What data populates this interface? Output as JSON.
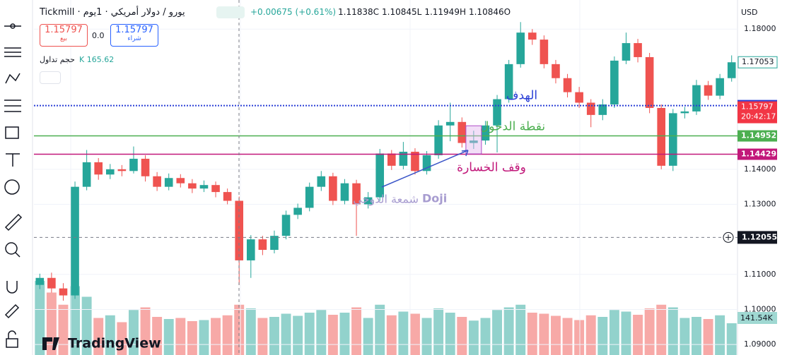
{
  "header": {
    "symbol": "يورو / دولار أمريكي · 1يوم · Tickmill",
    "change": "+0.00675 (+0.61%)",
    "ohlc": [
      "1.11838C",
      "1.10845L",
      "1.11949H",
      "1.10846O"
    ],
    "currency": "USD"
  },
  "trade": {
    "sell_price": "1.15797",
    "sell_label": "بيع",
    "spread": "0.0",
    "buy_price": "1.15797",
    "buy_label": "شراء"
  },
  "volume_info": {
    "label": "حجم تداول",
    "value": "K 165.62"
  },
  "branding": "TradingView",
  "chart_data": {
    "type": "candlestick",
    "candles": [
      [
        1.107,
        1.1102,
        1.1058,
        1.109
      ],
      [
        1.109,
        1.1105,
        1.1048,
        1.106
      ],
      [
        1.106,
        1.1075,
        1.1025,
        1.104
      ],
      [
        1.104,
        1.1365,
        1.103,
        1.135
      ],
      [
        1.135,
        1.1455,
        1.134,
        1.142
      ],
      [
        1.142,
        1.1432,
        1.137,
        1.1385
      ],
      [
        1.1385,
        1.1415,
        1.1372,
        1.14
      ],
      [
        1.14,
        1.1412,
        1.138,
        1.1395
      ],
      [
        1.1395,
        1.1465,
        1.1388,
        1.143
      ],
      [
        1.143,
        1.144,
        1.1365,
        1.138
      ],
      [
        1.138,
        1.1392,
        1.1338,
        1.135
      ],
      [
        1.135,
        1.1388,
        1.134,
        1.1375
      ],
      [
        1.1375,
        1.1386,
        1.1348,
        1.136
      ],
      [
        1.136,
        1.1372,
        1.1332,
        1.1345
      ],
      [
        1.1345,
        1.1368,
        1.1335,
        1.1355
      ],
      [
        1.1355,
        1.1365,
        1.132,
        1.1335
      ],
      [
        1.1335,
        1.1345,
        1.13,
        1.131
      ],
      [
        1.131,
        1.1322,
        1.107,
        1.114
      ],
      [
        1.114,
        1.1212,
        1.109,
        1.12
      ],
      [
        1.12,
        1.121,
        1.1155,
        1.117
      ],
      [
        1.117,
        1.1225,
        1.116,
        1.121
      ],
      [
        1.121,
        1.1282,
        1.12,
        1.127
      ],
      [
        1.127,
        1.1302,
        1.1258,
        1.129
      ],
      [
        1.129,
        1.1362,
        1.128,
        1.135
      ],
      [
        1.135,
        1.1395,
        1.1338,
        1.138
      ],
      [
        1.138,
        1.139,
        1.1298,
        1.131
      ],
      [
        1.131,
        1.1372,
        1.13,
        1.136
      ],
      [
        1.136,
        1.137,
        1.121,
        1.13
      ],
      [
        1.13,
        1.1335,
        1.1288,
        1.132
      ],
      [
        1.132,
        1.1458,
        1.131,
        1.1445
      ],
      [
        1.1445,
        1.1455,
        1.1398,
        1.141
      ],
      [
        1.141,
        1.1478,
        1.14,
        1.145
      ],
      [
        1.145,
        1.146,
        1.1385,
        1.1395
      ],
      [
        1.1395,
        1.1452,
        1.1385,
        1.144
      ],
      [
        1.144,
        1.154,
        1.143,
        1.1525
      ],
      [
        1.1525,
        1.159,
        1.148,
        1.1535
      ],
      [
        1.1535,
        1.1548,
        1.1462,
        1.1475
      ],
      [
        1.1475,
        1.151,
        1.1458,
        1.1482
      ],
      [
        1.1482,
        1.1538,
        1.147,
        1.1525
      ],
      [
        1.1525,
        1.1612,
        1.1448,
        1.16
      ],
      [
        1.16,
        1.1712,
        1.159,
        1.17
      ],
      [
        1.17,
        1.182,
        1.169,
        1.179
      ],
      [
        1.179,
        1.18,
        1.1755,
        1.177
      ],
      [
        1.177,
        1.1782,
        1.1688,
        1.17
      ],
      [
        1.17,
        1.1712,
        1.1645,
        1.166
      ],
      [
        1.166,
        1.1672,
        1.1605,
        1.162
      ],
      [
        1.162,
        1.1635,
        1.1575,
        1.159
      ],
      [
        1.159,
        1.16,
        1.152,
        1.1555
      ],
      [
        1.1555,
        1.16,
        1.154,
        1.1585
      ],
      [
        1.1585,
        1.1722,
        1.1575,
        1.171
      ],
      [
        1.171,
        1.179,
        1.17,
        1.176
      ],
      [
        1.176,
        1.1772,
        1.1705,
        1.172
      ],
      [
        1.172,
        1.1732,
        1.156,
        1.1575
      ],
      [
        1.1575,
        1.1585,
        1.14,
        1.141
      ],
      [
        1.141,
        1.1572,
        1.1395,
        1.156
      ],
      [
        1.156,
        1.1578,
        1.1545,
        1.1565
      ],
      [
        1.1565,
        1.1655,
        1.1555,
        1.164
      ],
      [
        1.164,
        1.1652,
        1.1598,
        1.161
      ],
      [
        1.161,
        1.1672,
        1.16,
        1.166
      ],
      [
        1.166,
        1.1725,
        1.165,
        1.17053
      ]
    ],
    "volume": [
      140,
      118,
      95,
      130,
      110,
      70,
      75,
      62,
      85,
      90,
      72,
      68,
      70,
      64,
      66,
      70,
      75,
      95,
      88,
      70,
      72,
      78,
      74,
      80,
      85,
      76,
      80,
      90,
      70,
      95,
      75,
      82,
      78,
      70,
      88,
      80,
      72,
      65,
      70,
      85,
      90,
      95,
      80,
      78,
      74,
      70,
      66,
      75,
      72,
      85,
      82,
      76,
      88,
      95,
      90,
      70,
      72,
      68,
      75,
      60
    ],
    "volume_last_label": "141.54K",
    "ylim": [
      1.087,
      1.1883
    ],
    "yticks": [
      {
        "value": 1.18,
        "label": "1.18000"
      },
      {
        "value": 1.14,
        "label": "1.14000"
      },
      {
        "value": 1.13,
        "label": "1.13000"
      },
      {
        "value": 1.11,
        "label": "1.11000"
      },
      {
        "value": 1.1,
        "label": "1.10000"
      },
      {
        "value": 1.09,
        "label": "1.09000"
      }
    ],
    "levels": [
      {
        "name": "الهدف",
        "value": 1.15817,
        "color": "#2a3fd6"
      },
      {
        "name": "نقطة الدخول",
        "value": 1.14952,
        "color": "#4caf50"
      },
      {
        "name": "وقف الخسارة",
        "value": 1.14429,
        "color": "#c2187a"
      }
    ],
    "bid": {
      "value": 1.15797,
      "countdown": "20:42:17"
    },
    "last": 1.17053,
    "crosshair": 1.12055,
    "annotation": {
      "latin": "Doji",
      "arabic": "شمعة الدوجي"
    },
    "up_color": "#26a69a",
    "down_color": "#ef5350"
  }
}
